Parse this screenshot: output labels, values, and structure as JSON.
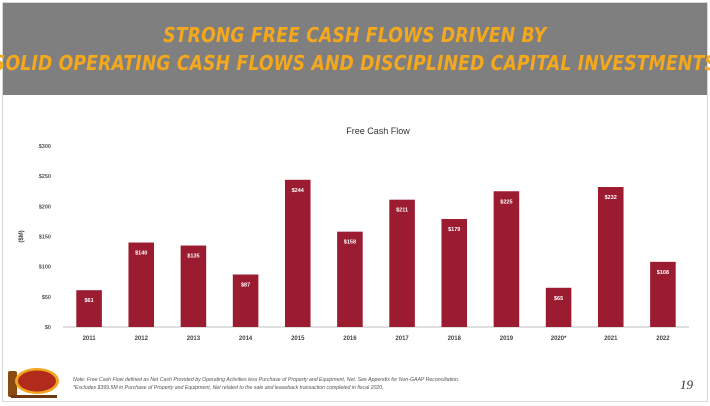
{
  "slide": {
    "title_line1": "STRONG FREE CASH FLOWS DRIVEN BY",
    "title_line2": "SOLID OPERATING CASH FLOWS AND DISCIPLINED CAPITAL INVESTMENTS",
    "footnote_1": "Note: Free Cash Flow defined as Net Cash Provided by Operating Activities less Purchase of Property and Equipment, Net. See Appendix for Non-GAAP Reconciliation.",
    "footnote_2": "*Excludes $399.5M in Purchase of Property and Equipment, Net related to the sale and leaseback transaction completed in fiscal 2020.",
    "page_number": "19",
    "logo_text": "Cracker Barrel"
  },
  "colors": {
    "header_bg": "#807f7f",
    "title_text": "#f4a81d",
    "bar": "#9b1b30",
    "bar_label": "#ffffff"
  },
  "chart_data": {
    "type": "bar",
    "title": "Free Cash Flow",
    "ylabel": "($M)",
    "xlabel": "",
    "categories": [
      "2011",
      "2012",
      "2013",
      "2014",
      "2015",
      "2016",
      "2017",
      "2018",
      "2019",
      "2020*",
      "2021",
      "2022"
    ],
    "values": [
      61,
      140,
      135,
      87,
      244,
      158,
      211,
      179,
      225,
      65,
      232,
      108
    ],
    "data_labels": [
      "$61",
      "$140",
      "$135",
      "$87",
      "$244",
      "$158",
      "$211",
      "$179",
      "$225",
      "$65",
      "$232",
      "$108"
    ],
    "ylim": [
      0,
      300
    ],
    "yticks": [
      0,
      50,
      100,
      150,
      200,
      250,
      300
    ],
    "ytick_labels": [
      "$0",
      "$50",
      "$100",
      "$150",
      "$200",
      "$250",
      "$300"
    ],
    "grid": false,
    "legend": "none"
  }
}
